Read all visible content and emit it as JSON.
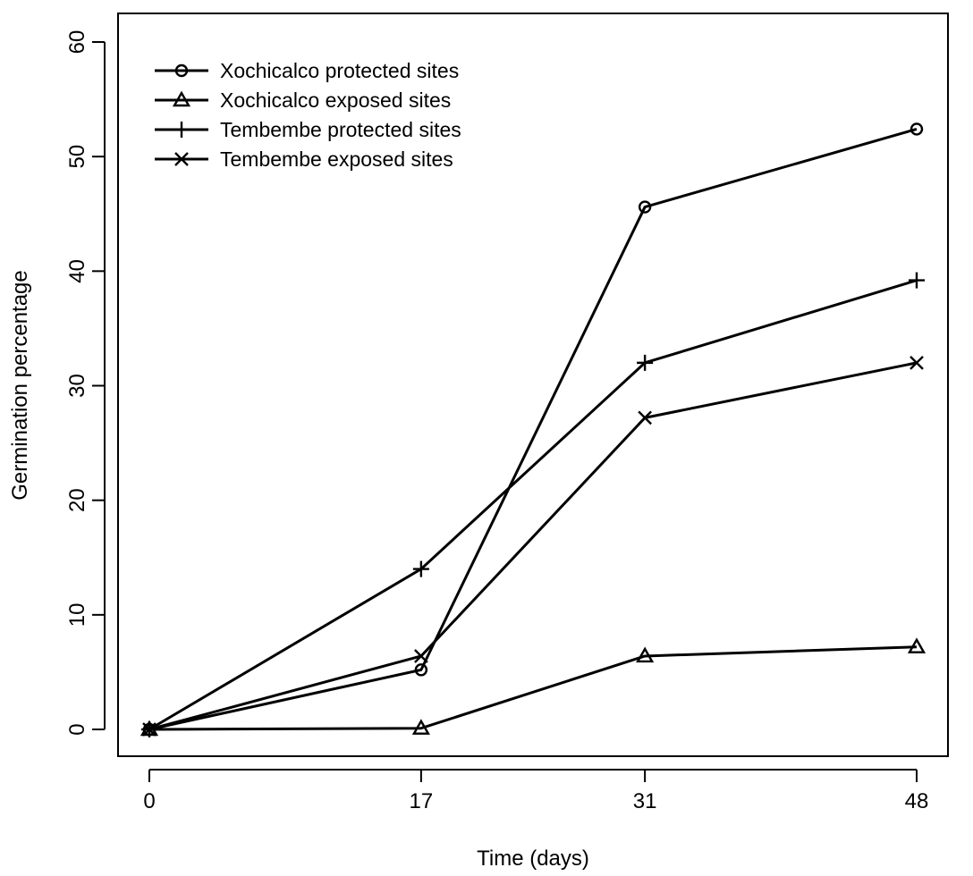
{
  "chart_data": {
    "type": "line",
    "title": "",
    "xlabel": "Time (days)",
    "ylabel": "Germination percentage",
    "x": [
      0,
      17,
      31,
      48
    ],
    "x_tick_labels": [
      "0",
      "17",
      "31",
      "48"
    ],
    "y_ticks": [
      0,
      10,
      20,
      30,
      40,
      50,
      60
    ],
    "y_tick_labels": [
      "0",
      "10",
      "20",
      "30",
      "40",
      "50",
      "60"
    ],
    "ylim": [
      -2.4,
      62.6
    ],
    "grid": false,
    "legend_position": "top-left",
    "color": "#000000",
    "series": [
      {
        "name": "Xochicalco protected sites",
        "marker": "circle",
        "values": [
          0,
          5.2,
          45.6,
          52.4
        ]
      },
      {
        "name": "Xochicalco exposed sites",
        "marker": "triangle",
        "values": [
          0,
          0.1,
          6.4,
          7.2
        ]
      },
      {
        "name": "Tembembe protected sites",
        "marker": "plus",
        "values": [
          0,
          14.0,
          32.0,
          39.2
        ]
      },
      {
        "name": "Tembembe exposed sites",
        "marker": "cross",
        "values": [
          0,
          6.4,
          27.2,
          32.0
        ]
      }
    ]
  }
}
